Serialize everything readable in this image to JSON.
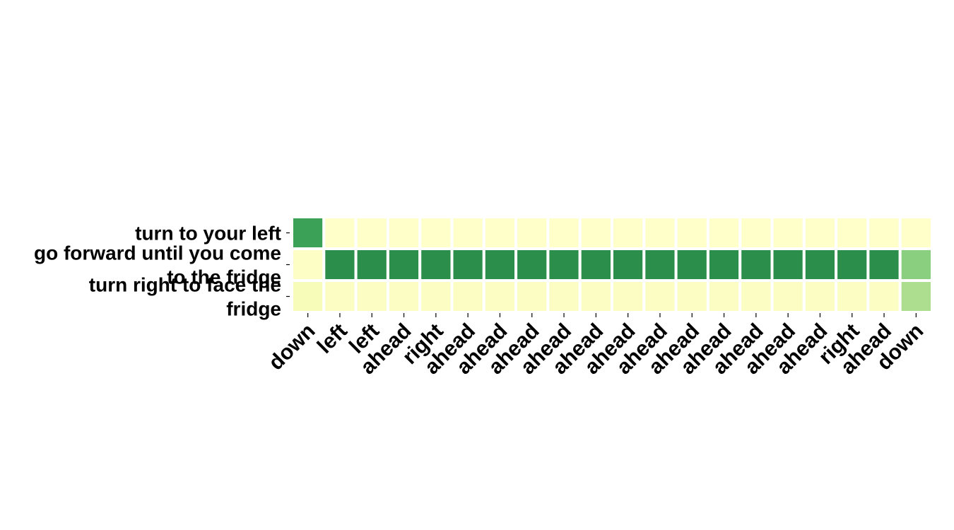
{
  "chart_data": {
    "type": "heatmap",
    "title": "",
    "xlabel": "",
    "ylabel": "",
    "rows": [
      "turn to your left",
      "go forward until you come to the fridge",
      "turn right to face the fridge"
    ],
    "row_lines": [
      [
        "turn to your left"
      ],
      [
        "go forward until you come",
        "to the fridge"
      ],
      [
        "turn right to face the",
        "fridge"
      ]
    ],
    "columns": [
      "down",
      "left",
      "left",
      "ahead",
      "right",
      "ahead",
      "ahead",
      "ahead",
      "ahead",
      "ahead",
      "ahead",
      "ahead",
      "ahead",
      "ahead",
      "ahead",
      "ahead",
      "ahead",
      "right",
      "ahead",
      "down"
    ],
    "values": [
      [
        0.85,
        0.02,
        0.02,
        0.02,
        0.02,
        0.02,
        0.02,
        0.02,
        0.02,
        0.02,
        0.02,
        0.02,
        0.02,
        0.02,
        0.02,
        0.02,
        0.02,
        0.02,
        0.02,
        0.02
      ],
      [
        0.05,
        0.95,
        0.95,
        0.95,
        0.95,
        0.95,
        0.95,
        0.95,
        0.95,
        0.95,
        0.95,
        0.95,
        0.95,
        0.95,
        0.95,
        0.95,
        0.95,
        0.95,
        0.95,
        0.6
      ],
      [
        0.15,
        0.08,
        0.08,
        0.08,
        0.08,
        0.08,
        0.08,
        0.08,
        0.08,
        0.08,
        0.08,
        0.08,
        0.08,
        0.08,
        0.08,
        0.08,
        0.08,
        0.08,
        0.08,
        0.5
      ]
    ],
    "colormap": "YlGn",
    "colorbar": false
  }
}
